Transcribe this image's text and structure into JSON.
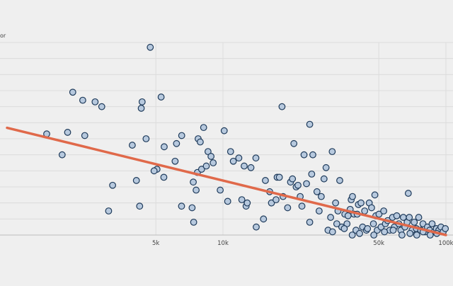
{
  "chart_data": {
    "type": "scatter",
    "xlabel": "",
    "ylabel": "",
    "ylabel_fragment": "or",
    "x_scale": "log",
    "x_ticks": [
      {
        "value": 5000,
        "label": "5k"
      },
      {
        "value": 10000,
        "label": "10k"
      },
      {
        "value": 50000,
        "label": "50k"
      },
      {
        "value": 100000,
        "label": "100k"
      }
    ],
    "ylim": [
      0,
      12
    ],
    "xlim": [
      1000,
      100000
    ],
    "grid": true,
    "colors": {
      "point_fill": "#b7c9de",
      "point_stroke": "#1e3a5a",
      "trendline": "#e0694a",
      "grid": "#dcdcdc"
    },
    "trendline": {
      "x": [
        1000,
        100000
      ],
      "y": [
        7.3,
        0.0
      ]
    },
    "points": [
      {
        "x": 4720,
        "y": 11.7
      },
      {
        "x": 2350,
        "y": 8.4
      },
      {
        "x": 2860,
        "y": 8.0
      },
      {
        "x": 4340,
        "y": 8.3
      },
      {
        "x": 5280,
        "y": 8.6
      },
      {
        "x": 2120,
        "y": 8.9
      },
      {
        "x": 2670,
        "y": 8.3
      },
      {
        "x": 4300,
        "y": 7.9
      },
      {
        "x": 2010,
        "y": 6.4
      },
      {
        "x": 2400,
        "y": 6.2
      },
      {
        "x": 1620,
        "y": 6.3
      },
      {
        "x": 4520,
        "y": 6.0
      },
      {
        "x": 3920,
        "y": 5.6
      },
      {
        "x": 1900,
        "y": 5.0
      },
      {
        "x": 5450,
        "y": 5.5
      },
      {
        "x": 6530,
        "y": 6.2
      },
      {
        "x": 6190,
        "y": 5.7
      },
      {
        "x": 7740,
        "y": 6.0
      },
      {
        "x": 8190,
        "y": 6.7
      },
      {
        "x": 7910,
        "y": 5.8
      },
      {
        "x": 5060,
        "y": 4.1
      },
      {
        "x": 5430,
        "y": 3.6
      },
      {
        "x": 3200,
        "y": 3.1
      },
      {
        "x": 4090,
        "y": 3.4
      },
      {
        "x": 4230,
        "y": 1.8
      },
      {
        "x": 3070,
        "y": 1.5
      },
      {
        "x": 4910,
        "y": 4.0
      },
      {
        "x": 6100,
        "y": 4.6
      },
      {
        "x": 6520,
        "y": 1.8
      },
      {
        "x": 7270,
        "y": 1.7
      },
      {
        "x": 7390,
        "y": 0.8
      },
      {
        "x": 7360,
        "y": 3.3
      },
      {
        "x": 7680,
        "y": 3.9
      },
      {
        "x": 7580,
        "y": 2.8
      },
      {
        "x": 8020,
        "y": 4.1
      },
      {
        "x": 8420,
        "y": 4.3
      },
      {
        "x": 8570,
        "y": 5.2
      },
      {
        "x": 9040,
        "y": 4.5
      },
      {
        "x": 8840,
        "y": 4.9
      },
      {
        "x": 9720,
        "y": 2.8
      },
      {
        "x": 10130,
        "y": 6.5
      },
      {
        "x": 10500,
        "y": 2.1
      },
      {
        "x": 10820,
        "y": 5.2
      },
      {
        "x": 11130,
        "y": 4.6
      },
      {
        "x": 11780,
        "y": 4.8
      },
      {
        "x": 12150,
        "y": 2.2
      },
      {
        "x": 12450,
        "y": 4.3
      },
      {
        "x": 12700,
        "y": 1.8
      },
      {
        "x": 12850,
        "y": 2.0
      },
      {
        "x": 13350,
        "y": 4.2
      },
      {
        "x": 14050,
        "y": 4.8
      },
      {
        "x": 14100,
        "y": 0.5
      },
      {
        "x": 15200,
        "y": 1.0
      },
      {
        "x": 15500,
        "y": 3.4
      },
      {
        "x": 16200,
        "y": 2.7
      },
      {
        "x": 16500,
        "y": 2.0
      },
      {
        "x": 17300,
        "y": 2.2
      },
      {
        "x": 17500,
        "y": 3.6
      },
      {
        "x": 17900,
        "y": 3.6
      },
      {
        "x": 18400,
        "y": 8.0
      },
      {
        "x": 18600,
        "y": 2.4
      },
      {
        "x": 19500,
        "y": 1.7
      },
      {
        "x": 20100,
        "y": 3.3
      },
      {
        "x": 20500,
        "y": 3.5
      },
      {
        "x": 20800,
        "y": 5.7
      },
      {
        "x": 21300,
        "y": 3.0
      },
      {
        "x": 21700,
        "y": 3.1
      },
      {
        "x": 22200,
        "y": 2.4
      },
      {
        "x": 22600,
        "y": 1.8
      },
      {
        "x": 23100,
        "y": 5.0
      },
      {
        "x": 23700,
        "y": 3.2
      },
      {
        "x": 24500,
        "y": 0.8
      },
      {
        "x": 24500,
        "y": 6.9
      },
      {
        "x": 25000,
        "y": 3.8
      },
      {
        "x": 25300,
        "y": 5.0
      },
      {
        "x": 26400,
        "y": 2.7
      },
      {
        "x": 27000,
        "y": 1.5
      },
      {
        "x": 27600,
        "y": 2.4
      },
      {
        "x": 28400,
        "y": 3.5
      },
      {
        "x": 29000,
        "y": 4.2
      },
      {
        "x": 29600,
        "y": 0.3
      },
      {
        "x": 30400,
        "y": 1.1
      },
      {
        "x": 30900,
        "y": 5.2
      },
      {
        "x": 32000,
        "y": 2.0
      },
      {
        "x": 32800,
        "y": 1.5
      },
      {
        "x": 33400,
        "y": 3.4
      },
      {
        "x": 34100,
        "y": 0.5
      },
      {
        "x": 35200,
        "y": 1.3
      },
      {
        "x": 36000,
        "y": 0.7
      },
      {
        "x": 36400,
        "y": 1.2
      },
      {
        "x": 37200,
        "y": 1.6
      },
      {
        "x": 37600,
        "y": 2.2
      },
      {
        "x": 38100,
        "y": 2.4
      },
      {
        "x": 38700,
        "y": 1.3
      },
      {
        "x": 39500,
        "y": 0.3
      },
      {
        "x": 40000,
        "y": 1.3
      },
      {
        "x": 40500,
        "y": 1.9
      },
      {
        "x": 41600,
        "y": 2.0
      },
      {
        "x": 42300,
        "y": 0.5
      },
      {
        "x": 43200,
        "y": 1.5
      },
      {
        "x": 44000,
        "y": 0.3
      },
      {
        "x": 45300,
        "y": 2.0
      },
      {
        "x": 46400,
        "y": 1.7
      },
      {
        "x": 47300,
        "y": 0.7
      },
      {
        "x": 48000,
        "y": 2.5
      },
      {
        "x": 48500,
        "y": 1.2
      },
      {
        "x": 49200,
        "y": 0.3
      },
      {
        "x": 50100,
        "y": 1.3
      },
      {
        "x": 51200,
        "y": 0.5
      },
      {
        "x": 52600,
        "y": 1.5
      },
      {
        "x": 53500,
        "y": 0.7
      },
      {
        "x": 54800,
        "y": 0.9
      },
      {
        "x": 56000,
        "y": 0.3
      },
      {
        "x": 57600,
        "y": 1.1
      },
      {
        "x": 58700,
        "y": 0.5
      },
      {
        "x": 60200,
        "y": 1.2
      },
      {
        "x": 61500,
        "y": 0.7
      },
      {
        "x": 62800,
        "y": 0.3
      },
      {
        "x": 64400,
        "y": 1.1
      },
      {
        "x": 65500,
        "y": 0.5
      },
      {
        "x": 67000,
        "y": 0.8
      },
      {
        "x": 68500,
        "y": 1.1
      },
      {
        "x": 70500,
        "y": 0.3
      },
      {
        "x": 72100,
        "y": 0.8
      },
      {
        "x": 73700,
        "y": 0.4
      },
      {
        "x": 75500,
        "y": 1.1
      },
      {
        "x": 77100,
        "y": 0.3
      },
      {
        "x": 78900,
        "y": 0.7
      },
      {
        "x": 80700,
        "y": 0.2
      },
      {
        "x": 82600,
        "y": 0.5
      },
      {
        "x": 84500,
        "y": 0.3
      },
      {
        "x": 86700,
        "y": 0.7
      },
      {
        "x": 88600,
        "y": 0.2
      },
      {
        "x": 90600,
        "y": 0.4
      },
      {
        "x": 92900,
        "y": 0.3
      },
      {
        "x": 95000,
        "y": 0.5
      },
      {
        "x": 97200,
        "y": 0.2
      },
      {
        "x": 99400,
        "y": 0.4
      },
      {
        "x": 91000,
        "y": 0.1
      },
      {
        "x": 85000,
        "y": 0.0
      },
      {
        "x": 79000,
        "y": 0.2
      },
      {
        "x": 74000,
        "y": 0.0
      },
      {
        "x": 69000,
        "y": 0.1
      },
      {
        "x": 63500,
        "y": 0.0
      },
      {
        "x": 58000,
        "y": 0.3
      },
      {
        "x": 53000,
        "y": 0.2
      },
      {
        "x": 47500,
        "y": 0.0
      },
      {
        "x": 44500,
        "y": 0.4
      },
      {
        "x": 41000,
        "y": 0.1
      },
      {
        "x": 38000,
        "y": 0.0
      },
      {
        "x": 35000,
        "y": 0.4
      },
      {
        "x": 32400,
        "y": 0.7
      },
      {
        "x": 31000,
        "y": 0.2
      },
      {
        "x": 67800,
        "y": 2.6
      }
    ]
  }
}
